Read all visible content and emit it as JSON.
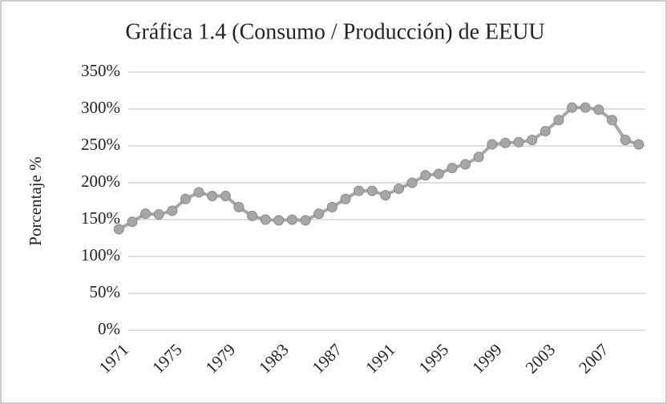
{
  "chart_data": {
    "type": "line",
    "title": "Gráfica 1.4 (Consumo / Producción) de EEUU",
    "y_label": "Porcentaje %",
    "categories": [
      "1971",
      null,
      null,
      null,
      "1975",
      null,
      null,
      null,
      "1979",
      null,
      null,
      null,
      "1983",
      null,
      null,
      null,
      "1987",
      null,
      null,
      null,
      "1991",
      null,
      null,
      null,
      "1995",
      null,
      null,
      null,
      "1999",
      null,
      null,
      null,
      "2003",
      null,
      null,
      null,
      "2007",
      null,
      null,
      null
    ],
    "series": [
      {
        "color": "#a6a6a6",
        "values": [
          137,
          147,
          158,
          157,
          162,
          178,
          187,
          182,
          182,
          167,
          155,
          150,
          149,
          150,
          149,
          158,
          167,
          178,
          189,
          189,
          183,
          192,
          200,
          210,
          212,
          220,
          225,
          235,
          252,
          254,
          255,
          258,
          270,
          285,
          302,
          302,
          299,
          285,
          258,
          252
        ]
      }
    ],
    "ylim": [
      0,
      350
    ],
    "yticks": [
      {
        "value": 0,
        "label": "0%"
      },
      {
        "value": 50,
        "label": "50%"
      },
      {
        "value": 100,
        "label": "100%"
      },
      {
        "value": 150,
        "label": "150%"
      },
      {
        "value": 200,
        "label": "200%"
      },
      {
        "value": 250,
        "label": "250%"
      },
      {
        "value": 300,
        "label": "300%"
      },
      {
        "value": 350,
        "label": "350%"
      }
    ],
    "grid": true
  }
}
